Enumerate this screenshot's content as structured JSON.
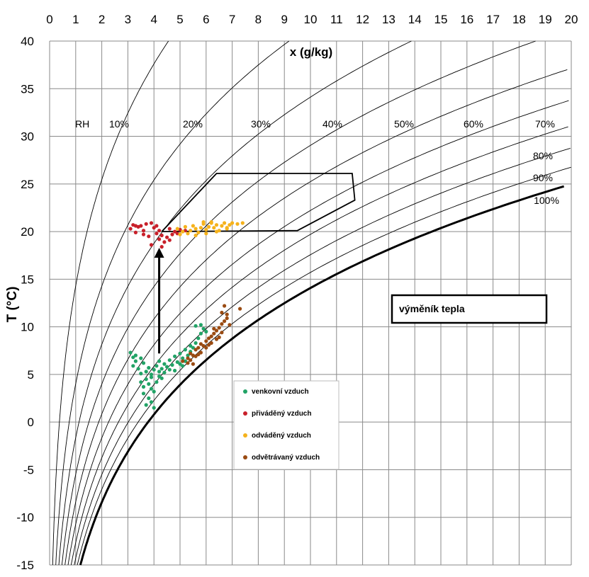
{
  "chart_data": {
    "type": "scatter",
    "title": "",
    "xlabel": "x (g/kg)",
    "ylabel": "T (°C)",
    "xlim": [
      0,
      20
    ],
    "ylim": [
      -15,
      40
    ],
    "x_ticks": [
      "0",
      "1",
      "2",
      "3",
      "4",
      "5",
      "6",
      "7",
      "8",
      "9",
      "10",
      "11",
      "12",
      "13",
      "14",
      "15",
      "16",
      "17",
      "18",
      "19",
      "20"
    ],
    "y_ticks": [
      "40",
      "35",
      "30",
      "25",
      "20",
      "15",
      "10",
      "5",
      "0",
      "-5",
      "-10",
      "-15"
    ],
    "grid": true,
    "rh_curves": [
      {
        "label": "10%",
        "rh": 0.1
      },
      {
        "label": "20%",
        "rh": 0.2
      },
      {
        "label": "30%",
        "rh": 0.3
      },
      {
        "label": "40%",
        "rh": 0.4
      },
      {
        "label": "50%",
        "rh": 0.5
      },
      {
        "label": "60%",
        "rh": 0.6
      },
      {
        "label": "70%",
        "rh": 0.7
      },
      {
        "label": "80%",
        "rh": 0.8
      },
      {
        "label": "90%",
        "rh": 0.9
      },
      {
        "label": "100%",
        "rh": 1.0
      }
    ],
    "rh_axis_label": "RH",
    "comfort_zone": [
      [
        4.3,
        20
      ],
      [
        6.4,
        26.1
      ],
      [
        11.6,
        26.1
      ],
      [
        11.7,
        23.3
      ],
      [
        9.5,
        20.1
      ],
      [
        4.3,
        20
      ]
    ],
    "arrow": {
      "from": [
        4.2,
        7.2
      ],
      "to": [
        4.2,
        18.3
      ]
    },
    "annotation": "výměník tepla",
    "legend": [
      {
        "label": "venkovní vzduch",
        "color": "#21a366"
      },
      {
        "label": "přiváděný vzduch",
        "color": "#c8202a"
      },
      {
        "label": "odváděný vzduch",
        "color": "#f5b21c"
      },
      {
        "label": "odvětrávaný vzduch",
        "color": "#9a4b12"
      }
    ],
    "series": [
      {
        "name": "venkovní vzduch",
        "color": "#21a366",
        "points": [
          [
            3.1,
            7.3
          ],
          [
            3.2,
            6.8
          ],
          [
            3.3,
            6.4
          ],
          [
            3.2,
            5.9
          ],
          [
            3.4,
            5.6
          ],
          [
            3.6,
            6.2
          ],
          [
            3.5,
            5.1
          ],
          [
            3.7,
            5.3
          ],
          [
            3.8,
            5.7
          ],
          [
            3.9,
            5.0
          ],
          [
            4.0,
            5.5
          ],
          [
            4.1,
            5.9
          ],
          [
            4.2,
            5.3
          ],
          [
            4.3,
            5.6
          ],
          [
            4.4,
            5.2
          ],
          [
            4.5,
            5.8
          ],
          [
            4.6,
            5.5
          ],
          [
            4.7,
            6.0
          ],
          [
            4.8,
            5.4
          ],
          [
            4.9,
            6.3
          ],
          [
            5.0,
            6.1
          ],
          [
            5.1,
            6.7
          ],
          [
            5.2,
            6.4
          ],
          [
            5.3,
            7.0
          ],
          [
            5.4,
            7.4
          ],
          [
            5.5,
            7.8
          ],
          [
            5.6,
            8.3
          ],
          [
            5.7,
            8.8
          ],
          [
            5.8,
            9.3
          ],
          [
            5.9,
            9.8
          ],
          [
            5.6,
            10.1
          ],
          [
            5.8,
            10.2
          ],
          [
            6.0,
            9.5
          ],
          [
            3.7,
            4.5
          ],
          [
            3.8,
            4.0
          ],
          [
            3.9,
            3.5
          ],
          [
            3.6,
            3.0
          ],
          [
            3.8,
            2.5
          ],
          [
            3.9,
            2.1
          ],
          [
            3.7,
            1.8
          ],
          [
            4.0,
            3.2
          ],
          [
            4.1,
            4.2
          ],
          [
            4.2,
            4.8
          ],
          [
            4.3,
            4.6
          ],
          [
            3.5,
            4.2
          ],
          [
            3.6,
            3.7
          ],
          [
            3.9,
            4.7
          ],
          [
            4.0,
            1.5
          ],
          [
            4.2,
            6.4
          ],
          [
            4.4,
            6.1
          ],
          [
            4.6,
            6.5
          ],
          [
            5.0,
            7.2
          ],
          [
            5.2,
            7.6
          ],
          [
            5.4,
            8.0
          ],
          [
            3.3,
            7.0
          ],
          [
            3.5,
            6.7
          ],
          [
            4.8,
            6.9
          ],
          [
            5.1,
            5.9
          ]
        ]
      },
      {
        "name": "přiváděný vzduch",
        "color": "#c8202a",
        "points": [
          [
            3.1,
            20.3
          ],
          [
            3.2,
            20.7
          ],
          [
            3.3,
            19.9
          ],
          [
            3.4,
            20.5
          ],
          [
            3.6,
            20.1
          ],
          [
            3.7,
            20.8
          ],
          [
            3.8,
            19.5
          ],
          [
            3.9,
            18.6
          ],
          [
            4.0,
            20.4
          ],
          [
            4.1,
            19.8
          ],
          [
            4.2,
            19.2
          ],
          [
            4.3,
            19.6
          ],
          [
            4.4,
            18.9
          ],
          [
            4.5,
            19.4
          ],
          [
            4.6,
            20.3
          ],
          [
            4.7,
            19.7
          ],
          [
            4.8,
            20.0
          ],
          [
            5.0,
            20.2
          ],
          [
            5.2,
            20.1
          ],
          [
            3.5,
            20.6
          ],
          [
            3.9,
            20.9
          ],
          [
            4.1,
            20.6
          ],
          [
            4.3,
            18.4
          ],
          [
            4.6,
            19.1
          ],
          [
            4.9,
            19.8
          ],
          [
            3.6,
            19.7
          ],
          [
            3.3,
            20.6
          ],
          [
            4.2,
            20.1
          ]
        ]
      },
      {
        "name": "odváděný vzduch",
        "color": "#f5b21c",
        "points": [
          [
            4.9,
            20.3
          ],
          [
            5.1,
            20.0
          ],
          [
            5.2,
            20.5
          ],
          [
            5.4,
            20.1
          ],
          [
            5.5,
            20.6
          ],
          [
            5.6,
            20.3
          ],
          [
            5.7,
            19.9
          ],
          [
            5.8,
            20.4
          ],
          [
            5.9,
            20.8
          ],
          [
            6.0,
            20.2
          ],
          [
            6.1,
            20.5
          ],
          [
            6.2,
            20.9
          ],
          [
            6.3,
            20.4
          ],
          [
            6.4,
            20.7
          ],
          [
            6.5,
            20.1
          ],
          [
            6.6,
            20.6
          ],
          [
            6.7,
            20.9
          ],
          [
            6.8,
            20.4
          ],
          [
            6.9,
            20.7
          ],
          [
            7.0,
            20.9
          ],
          [
            7.2,
            20.8
          ],
          [
            7.4,
            20.9
          ],
          [
            5.3,
            19.8
          ],
          [
            5.6,
            19.6
          ],
          [
            6.0,
            19.8
          ],
          [
            6.4,
            20.0
          ],
          [
            6.8,
            20.3
          ],
          [
            5.9,
            21.0
          ],
          [
            6.2,
            21.0
          ],
          [
            5.0,
            19.7
          ]
        ]
      },
      {
        "name": "odvětrávaný vzduch",
        "color": "#9a4b12",
        "points": [
          [
            5.1,
            6.4
          ],
          [
            5.3,
            6.7
          ],
          [
            5.4,
            7.2
          ],
          [
            5.5,
            7.0
          ],
          [
            5.6,
            7.6
          ],
          [
            5.7,
            7.8
          ],
          [
            5.8,
            8.2
          ],
          [
            5.9,
            8.0
          ],
          [
            6.0,
            8.5
          ],
          [
            6.1,
            8.8
          ],
          [
            6.2,
            9.0
          ],
          [
            6.3,
            9.3
          ],
          [
            6.4,
            9.6
          ],
          [
            6.5,
            9.9
          ],
          [
            6.6,
            10.3
          ],
          [
            6.7,
            10.6
          ],
          [
            6.8,
            10.9
          ],
          [
            6.6,
            11.5
          ],
          [
            6.7,
            12.2
          ],
          [
            6.6,
            9.4
          ],
          [
            6.4,
            8.7
          ],
          [
            6.2,
            8.3
          ],
          [
            6.0,
            7.8
          ],
          [
            5.8,
            7.3
          ],
          [
            5.6,
            6.9
          ],
          [
            5.4,
            6.5
          ],
          [
            5.3,
            6.2
          ],
          [
            5.7,
            7.1
          ],
          [
            6.1,
            8.1
          ],
          [
            6.5,
            8.9
          ],
          [
            6.9,
            10.2
          ],
          [
            7.3,
            11.9
          ],
          [
            5.5,
            6.1
          ],
          [
            6.3,
            9.8
          ],
          [
            6.8,
            11.3
          ]
        ]
      }
    ]
  }
}
